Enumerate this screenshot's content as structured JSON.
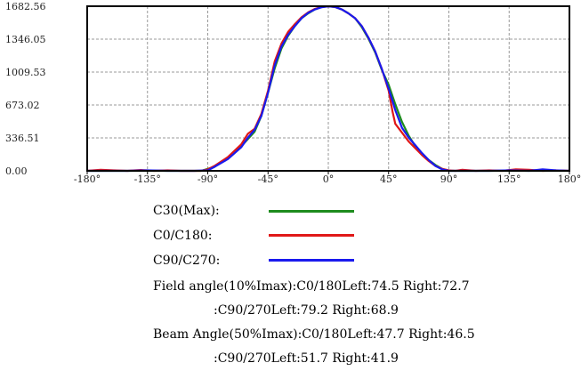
{
  "chart_data": {
    "type": "line",
    "title": "",
    "xlabel": "",
    "ylabel": "",
    "xlim": [
      -180,
      180
    ],
    "ylim": [
      0,
      1682.56
    ],
    "y_ticks": [
      "0.00",
      "336.51",
      "673.02",
      "1009.53",
      "1346.05",
      "1682.56"
    ],
    "y_tick_values": [
      0,
      336.51,
      673.02,
      1009.53,
      1346.05,
      1682.56
    ],
    "x_ticks": [
      "-180°",
      "-135°",
      "-90°",
      "-45°",
      "0°",
      "45°",
      "90°",
      "135°",
      "180°"
    ],
    "x_tick_values": [
      -180,
      -135,
      -90,
      -45,
      0,
      45,
      90,
      135,
      180
    ],
    "grid": true,
    "series": [
      {
        "name": "C30(Max):",
        "color": "#1e8c1e",
        "x": [
          -180,
          -135,
          -95,
          -85,
          -75,
          -65,
          -55,
          -50,
          -45,
          -40,
          -35,
          -30,
          -25,
          -20,
          -15,
          -10,
          -5,
          0,
          5,
          10,
          15,
          20,
          25,
          30,
          35,
          40,
          45,
          50,
          55,
          60,
          65,
          70,
          75,
          80,
          85,
          90,
          95,
          135,
          180
        ],
        "y": [
          0,
          0,
          0,
          40,
          130,
          250,
          400,
          560,
          800,
          1050,
          1250,
          1380,
          1480,
          1560,
          1610,
          1650,
          1675,
          1682,
          1675,
          1650,
          1610,
          1560,
          1470,
          1350,
          1210,
          1030,
          880,
          680,
          500,
          360,
          250,
          170,
          110,
          60,
          20,
          0,
          0,
          0,
          0
        ]
      },
      {
        "name": "C0/C180:",
        "color": "#e01818",
        "x": [
          -180,
          -170,
          -160,
          -150,
          -140,
          -130,
          -120,
          -110,
          -100,
          -95,
          -90,
          -85,
          -75,
          -65,
          -60,
          -55,
          -50,
          -45,
          -40,
          -35,
          -30,
          -25,
          -20,
          -15,
          -10,
          -5,
          0,
          5,
          10,
          15,
          20,
          25,
          30,
          35,
          40,
          45,
          48,
          50,
          55,
          60,
          65,
          70,
          75,
          80,
          85,
          90,
          95,
          100,
          110,
          120,
          130,
          140,
          150,
          160,
          170,
          180
        ],
        "y": [
          0,
          10,
          5,
          0,
          8,
          0,
          5,
          0,
          0,
          0,
          15,
          50,
          140,
          270,
          380,
          430,
          580,
          820,
          1120,
          1300,
          1420,
          1500,
          1570,
          1620,
          1655,
          1675,
          1682,
          1675,
          1650,
          1610,
          1560,
          1480,
          1360,
          1220,
          1040,
          820,
          600,
          480,
          390,
          300,
          230,
          160,
          100,
          50,
          20,
          5,
          0,
          10,
          0,
          5,
          0,
          15,
          10,
          0,
          5,
          0
        ]
      },
      {
        "name": "C90/C270:",
        "color": "#1a1aee",
        "x": [
          -180,
          -150,
          -135,
          -120,
          -100,
          -90,
          -85,
          -75,
          -65,
          -60,
          -55,
          -50,
          -45,
          -40,
          -35,
          -30,
          -25,
          -20,
          -15,
          -10,
          -5,
          0,
          5,
          10,
          15,
          20,
          25,
          30,
          35,
          40,
          45,
          50,
          55,
          60,
          65,
          70,
          75,
          80,
          85,
          90,
          100,
          120,
          135,
          150,
          160,
          170,
          180
        ],
        "y": [
          0,
          0,
          5,
          0,
          0,
          5,
          40,
          120,
          240,
          340,
          420,
          560,
          800,
          1080,
          1270,
          1390,
          1480,
          1560,
          1615,
          1650,
          1672,
          1682,
          1675,
          1650,
          1610,
          1560,
          1480,
          1360,
          1220,
          1040,
          840,
          620,
          440,
          340,
          260,
          180,
          110,
          50,
          15,
          0,
          0,
          0,
          5,
          0,
          15,
          5,
          0
        ]
      }
    ]
  },
  "legend": {
    "c30": "C30(Max):",
    "c0": "C0/C180:",
    "c90": "C90/C270:"
  },
  "info": {
    "field_line1": "Field angle(10%Imax):C0/180Left:74.5 Right:72.7",
    "field_line2": ":C90/270Left:79.2 Right:68.9",
    "beam_line1": "Beam Angle(50%Imax):C0/180Left:47.7 Right:46.5",
    "beam_line2": ":C90/270Left:51.7 Right:41.9"
  }
}
